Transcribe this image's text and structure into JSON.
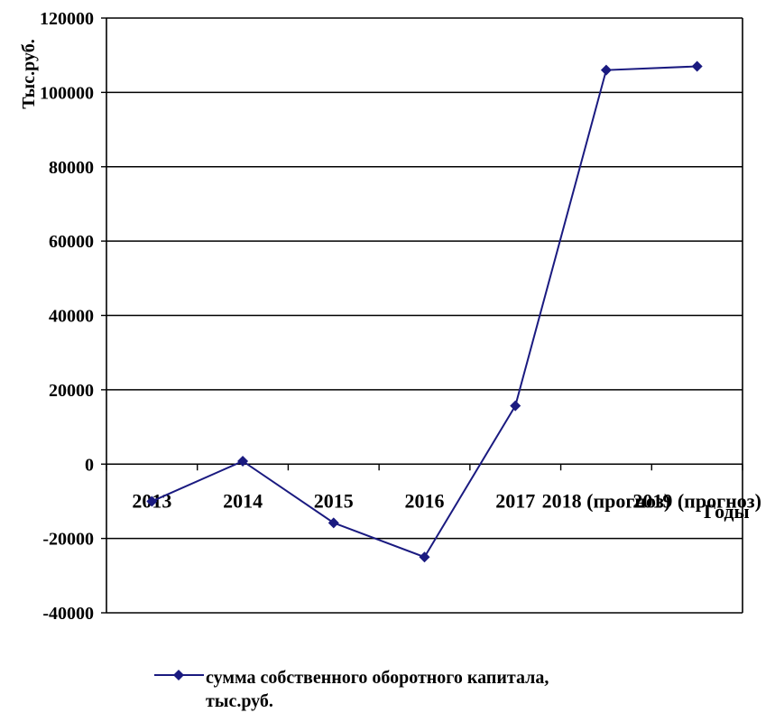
{
  "chart_data": {
    "type": "line",
    "title": "",
    "xlabel": "Годы",
    "ylabel": "Тыс.руб.",
    "ylim": [
      -40000,
      120000
    ],
    "yticks": [
      -40000,
      -20000,
      0,
      20000,
      40000,
      60000,
      80000,
      100000,
      120000
    ],
    "grid": true,
    "legend_position": "bottom",
    "categories": [
      "2013",
      "2014",
      "2015",
      "2016",
      "2017",
      "2018 (прогноз)",
      "2019 (прогноз)"
    ],
    "series": [
      {
        "name": "сумма собственного оборотного капитала, тыс.руб.",
        "color": "#1a1a80",
        "marker": "diamond",
        "values": [
          -10000,
          800,
          -15800,
          -25000,
          15700,
          106000,
          107000
        ]
      }
    ]
  }
}
